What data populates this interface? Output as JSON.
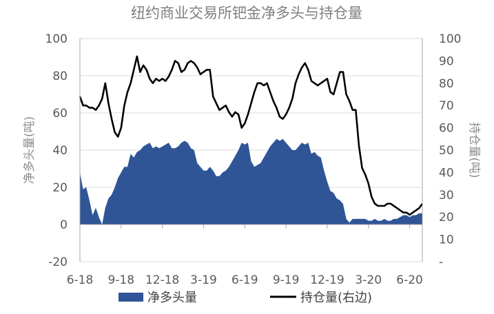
{
  "chart_data": {
    "type": "area+line",
    "title": "纽约商业交易所钯金净多头与持仓量",
    "ylabel_left": "净多头量(吨)",
    "ylabel_right": "持仓量(吨)",
    "ylim_left": [
      -20,
      100
    ],
    "ylim_right": [
      0,
      100
    ],
    "yticks_left": [
      "-20",
      "0",
      "20",
      "40",
      "60",
      "80",
      "100"
    ],
    "yticks_right": [
      "-",
      "10",
      "20",
      "30",
      "40",
      "50",
      "60",
      "70",
      "80",
      "90",
      "100"
    ],
    "x_tick_labels": [
      "6-18",
      "9-18",
      "12-18",
      "3-19",
      "6-19",
      "9-19",
      "12-19",
      "3-20",
      "6-20"
    ],
    "x_tick_positions": [
      0,
      13,
      26,
      39,
      52,
      65,
      78,
      91,
      104
    ],
    "x_range": [
      0,
      108
    ],
    "grid": "horizontal",
    "legend": "bottom",
    "colors": {
      "area": "#2f5597",
      "line": "#000000"
    },
    "series": [
      {
        "name": "净多头量",
        "kind": "area",
        "axis": "left",
        "values": [
          28,
          19,
          20,
          13,
          5,
          9,
          4,
          0,
          9,
          14,
          16,
          20,
          25,
          28,
          31,
          31,
          38,
          36,
          39,
          40,
          42,
          43,
          44,
          41,
          42,
          41,
          42,
          43,
          44,
          41,
          41,
          42,
          44,
          45,
          44,
          41,
          40,
          33,
          31,
          29,
          29,
          31,
          29,
          26,
          26,
          28,
          29,
          31,
          34,
          37,
          40,
          44,
          43,
          44,
          34,
          31,
          32,
          33,
          36,
          39,
          42,
          44,
          46,
          45,
          46,
          44,
          42,
          40,
          40,
          42,
          44,
          43,
          44,
          38,
          39,
          37,
          36,
          29,
          23,
          18,
          17,
          14,
          13,
          11,
          3,
          1,
          3,
          3,
          3,
          3,
          3,
          2,
          2,
          3,
          2,
          2,
          3,
          2,
          2,
          3,
          3,
          4,
          5,
          5,
          4,
          5,
          5,
          6,
          6
        ]
      },
      {
        "name": "持仓量(右边)",
        "kind": "line",
        "axis": "right",
        "values": [
          74,
          70,
          70,
          69,
          69,
          68,
          70,
          73,
          80,
          71,
          64,
          58,
          56,
          60,
          70,
          76,
          80,
          86,
          92,
          85,
          88,
          86,
          82,
          80,
          82,
          81,
          82,
          81,
          83,
          86,
          90,
          89,
          85,
          86,
          89,
          90,
          89,
          87,
          84,
          85,
          86,
          86,
          74,
          71,
          68,
          69,
          70,
          67,
          65,
          67,
          66,
          60,
          62,
          66,
          71,
          76,
          80,
          80,
          79,
          80,
          76,
          72,
          69,
          65,
          64,
          66,
          69,
          73,
          80,
          84,
          87,
          89,
          86,
          81,
          80,
          79,
          80,
          81,
          82,
          76,
          75,
          80,
          85,
          85,
          75,
          72,
          68,
          68,
          52,
          42,
          39,
          35,
          29,
          26,
          25,
          25,
          25,
          26,
          26,
          25,
          24,
          23,
          22,
          22,
          21,
          22,
          23,
          24,
          26
        ]
      }
    ]
  }
}
